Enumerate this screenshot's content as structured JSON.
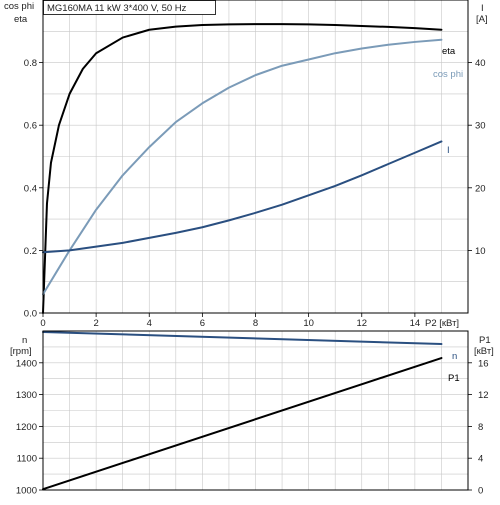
{
  "title_box": "MG160MA    11 kW    3*400 V, 50 Hz",
  "colors": {
    "grid": "#c8c8c8",
    "frame": "#000000",
    "eta": "#000000",
    "cosphi": "#7b9bb8",
    "current": "#2a4f80",
    "speed": "#2a4f80",
    "p1": "#000000"
  },
  "top_axes": {
    "left_label_1": "cos phi",
    "left_label_2": "eta",
    "right_label_1": "I",
    "right_label_2": "[A]",
    "x_label": "P2 [кВт]"
  },
  "bottom_axes": {
    "left_label_1": "n",
    "left_label_2": "[rpm]",
    "right_label_1": "P1",
    "right_label_2": "[кВт]"
  },
  "chart_data": [
    {
      "type": "line",
      "title": "MG160MA    11 kW    3*400 V, 50 Hz",
      "xlabel": "P2 [кВт]",
      "xlim": [
        0,
        16
      ],
      "x_ticks": [
        0,
        2,
        4,
        6,
        8,
        10,
        12,
        14
      ],
      "ylim_left": [
        0,
        1
      ],
      "y_ticks_left": [
        0.0,
        0.2,
        0.4,
        0.6,
        0.8
      ],
      "ylim_right": [
        0,
        50
      ],
      "y_ticks_right": [
        10,
        20,
        30,
        40
      ],
      "grid": true,
      "series": [
        {
          "name": "eta",
          "axis": "left",
          "x": [
            0.0,
            0.15,
            0.3,
            0.6,
            1.0,
            1.5,
            2.0,
            3.0,
            4.0,
            5.0,
            6.0,
            7.0,
            8.0,
            9.0,
            10.0,
            11.0,
            12.0,
            13.0,
            14.0,
            15.0
          ],
          "values": [
            0.0,
            0.35,
            0.48,
            0.6,
            0.7,
            0.78,
            0.83,
            0.88,
            0.905,
            0.915,
            0.92,
            0.922,
            0.923,
            0.923,
            0.922,
            0.92,
            0.917,
            0.914,
            0.91,
            0.905
          ]
        },
        {
          "name": "cos phi",
          "axis": "left",
          "x": [
            0.0,
            0.5,
            1.0,
            2.0,
            3.0,
            4.0,
            5.0,
            6.0,
            7.0,
            8.0,
            9.0,
            10.0,
            11.0,
            12.0,
            13.0,
            14.0,
            15.0
          ],
          "values": [
            0.06,
            0.13,
            0.2,
            0.33,
            0.44,
            0.53,
            0.61,
            0.67,
            0.72,
            0.76,
            0.79,
            0.81,
            0.83,
            0.845,
            0.857,
            0.866,
            0.873
          ]
        },
        {
          "name": "I",
          "axis": "right",
          "x": [
            0.0,
            1.0,
            2.0,
            3.0,
            4.0,
            5.0,
            6.0,
            7.0,
            8.0,
            9.0,
            10.0,
            11.0,
            12.0,
            13.0,
            14.0,
            15.0
          ],
          "values": [
            9.7,
            10.0,
            10.6,
            11.2,
            12.0,
            12.8,
            13.7,
            14.8,
            16.0,
            17.3,
            18.8,
            20.3,
            22.0,
            23.8,
            25.6,
            27.4
          ]
        }
      ]
    },
    {
      "type": "line",
      "xlim": [
        0,
        16
      ],
      "ylim_left": [
        1000,
        1500
      ],
      "y_ticks_left": [
        1000,
        1100,
        1200,
        1300,
        1400
      ],
      "ylim_right": [
        0,
        20
      ],
      "y_ticks_right": [
        0,
        4,
        8,
        12,
        16
      ],
      "grid": true,
      "series": [
        {
          "name": "n",
          "axis": "left",
          "x": [
            0,
            15
          ],
          "values": [
            1497,
            1459
          ]
        },
        {
          "name": "P1",
          "axis": "right",
          "x": [
            0,
            15
          ],
          "values": [
            0.1,
            16.6
          ]
        }
      ]
    }
  ]
}
